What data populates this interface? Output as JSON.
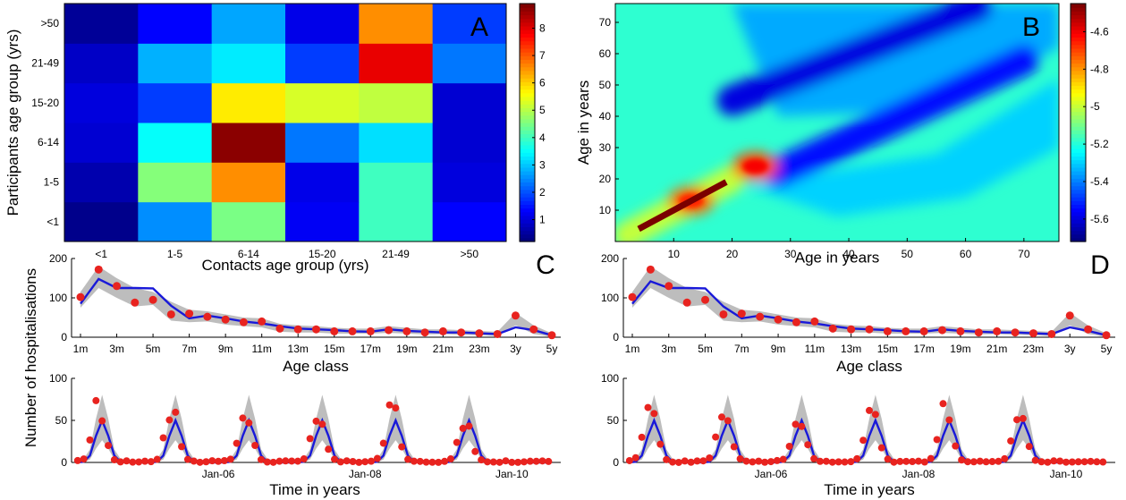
{
  "chart_data": [
    {
      "type": "heatmap",
      "panel": "A",
      "xlabel": "Contacts age group (yrs)",
      "ylabel": "Participants age group (yrs)",
      "categories_x": [
        "<1",
        "1-5",
        "6-14",
        "15-20",
        "21-49",
        ">50"
      ],
      "categories_y": [
        "<1",
        "1-5",
        "6-14",
        "15-20",
        "21-49",
        ">50"
      ],
      "values": [
        [
          0.3,
          2.5,
          4.5,
          1.2,
          4.0,
          1.3
        ],
        [
          0.6,
          4.6,
          6.6,
          1.1,
          4.0,
          1.0
        ],
        [
          0.9,
          3.5,
          8.8,
          2.3,
          3.2,
          0.9
        ],
        [
          1.0,
          1.8,
          5.8,
          5.3,
          5.1,
          0.9
        ],
        [
          0.8,
          2.8,
          3.3,
          1.8,
          8.0,
          2.3
        ],
        [
          0.4,
          1.3,
          2.7,
          1.1,
          6.6,
          1.8
        ]
      ],
      "colorbar_ticks": [
        "1",
        "2",
        "3",
        "4",
        "5",
        "6",
        "7",
        "8"
      ],
      "colorbar_range": [
        0.2,
        8.9
      ],
      "grid": false
    },
    {
      "type": "heatmap",
      "panel": "B",
      "xlabel": "Age in years",
      "ylabel": "Age in years",
      "xlim": [
        0,
        76
      ],
      "ylim": [
        0,
        76
      ],
      "xticks": [
        "10",
        "20",
        "30",
        "40",
        "50",
        "60",
        "70"
      ],
      "yticks": [
        "10",
        "20",
        "30",
        "40",
        "50",
        "60",
        "70"
      ],
      "colorbar_ticks": [
        "-4.6",
        "-4.8",
        "-5",
        "-5.2",
        "-5.4",
        "-5.6"
      ],
      "colorbar_range": [
        -5.72,
        -4.45
      ],
      "features": [
        {
          "kind": "ridge",
          "from": [
            4,
            4
          ],
          "to": [
            19,
            19
          ],
          "level": -4.45
        },
        {
          "kind": "hotspot",
          "at": [
            13,
            13
          ],
          "level": -4.75
        },
        {
          "kind": "hotspot",
          "at": [
            24,
            24
          ],
          "level": -4.7
        },
        {
          "kind": "band",
          "from": [
            20,
            45
          ],
          "to": [
            62,
            75
          ],
          "level": -5.6
        },
        {
          "kind": "band",
          "from": [
            28,
            22
          ],
          "to": [
            70,
            58
          ],
          "level": -5.55
        }
      ],
      "grid": false
    },
    {
      "type": "line",
      "panel": "C",
      "xlabel": "Age class",
      "ylabel": "Number of hospitalisations",
      "categories": [
        "1m",
        "2m",
        "3m",
        "4m",
        "5m",
        "6m",
        "7m",
        "8m",
        "9m",
        "10m",
        "11m",
        "12m",
        "13m",
        "14m",
        "15m",
        "16m",
        "17m",
        "18m",
        "19m",
        "20m",
        "21m",
        "22m",
        "23m",
        "24m",
        "3y",
        "4y",
        "5y"
      ],
      "tick_labels": [
        "1m",
        "3m",
        "5m",
        "7m",
        "9m",
        "11m",
        "13m",
        "15m",
        "17m",
        "19m",
        "21m",
        "23m",
        "3y",
        "5y"
      ],
      "ylim": [
        0,
        200
      ],
      "yticks": [
        "0",
        "100",
        "200"
      ],
      "series": [
        {
          "values": [
            102,
            172,
            130,
            88,
            95,
            58,
            60,
            52,
            45,
            38,
            40,
            22,
            20,
            20,
            15,
            15,
            15,
            18,
            15,
            12,
            15,
            12,
            10,
            8,
            55,
            20,
            5
          ],
          "style": "points"
        },
        {
          "values": [
            85,
            148,
            125,
            125,
            124,
            80,
            48,
            55,
            48,
            40,
            35,
            28,
            22,
            20,
            18,
            15,
            14,
            20,
            16,
            14,
            12,
            12,
            10,
            8,
            25,
            18,
            5
          ],
          "style": "line"
        }
      ],
      "band": {
        "lower": [
          75,
          125,
          100,
          78,
          82,
          42,
          38,
          40,
          32,
          28,
          25,
          14,
          12,
          12,
          9,
          9,
          9,
          11,
          9,
          7,
          8,
          6,
          5,
          3,
          30,
          8,
          1
        ],
        "upper": [
          115,
          180,
          150,
          125,
          115,
          90,
          70,
          66,
          58,
          50,
          48,
          34,
          30,
          28,
          24,
          22,
          22,
          28,
          24,
          20,
          20,
          18,
          16,
          14,
          62,
          30,
          10
        ]
      }
    },
    {
      "type": "line",
      "panel": "D",
      "xlabel": "Age class",
      "ylabel": "",
      "categories": [
        "1m",
        "2m",
        "3m",
        "4m",
        "5m",
        "6m",
        "7m",
        "8m",
        "9m",
        "10m",
        "11m",
        "12m",
        "13m",
        "14m",
        "15m",
        "16m",
        "17m",
        "18m",
        "19m",
        "20m",
        "21m",
        "22m",
        "23m",
        "24m",
        "3y",
        "4y",
        "5y"
      ],
      "tick_labels": [
        "1m",
        "3m",
        "5m",
        "7m",
        "9m",
        "11m",
        "13m",
        "15m",
        "17m",
        "19m",
        "21m",
        "23m",
        "3y",
        "5y"
      ],
      "ylim": [
        0,
        200
      ],
      "yticks": [
        "0",
        "100",
        "200"
      ],
      "series": [
        {
          "values": [
            102,
            172,
            130,
            88,
            95,
            58,
            60,
            52,
            45,
            38,
            40,
            22,
            20,
            20,
            15,
            15,
            15,
            18,
            15,
            12,
            15,
            12,
            10,
            8,
            55,
            20,
            5
          ],
          "style": "points"
        },
        {
          "values": [
            85,
            142,
            125,
            125,
            124,
            78,
            48,
            55,
            48,
            40,
            35,
            28,
            22,
            20,
            18,
            15,
            14,
            20,
            16,
            14,
            12,
            12,
            10,
            8,
            25,
            16,
            5
          ],
          "style": "line"
        }
      ],
      "band": {
        "lower": [
          75,
          125,
          100,
          78,
          82,
          42,
          38,
          40,
          32,
          28,
          25,
          14,
          12,
          12,
          9,
          9,
          9,
          11,
          9,
          7,
          8,
          6,
          5,
          3,
          30,
          8,
          1
        ],
        "upper": [
          115,
          180,
          150,
          125,
          115,
          90,
          70,
          66,
          58,
          50,
          48,
          34,
          30,
          28,
          24,
          22,
          22,
          28,
          24,
          20,
          20,
          18,
          16,
          14,
          62,
          30,
          10
        ]
      }
    },
    {
      "type": "line",
      "panel": "time-left",
      "xlabel": "Time in years",
      "ylabel": "",
      "xlim": [
        0,
        72
      ],
      "ylim": [
        0,
        100
      ],
      "yticks": [
        "0",
        "50",
        "100"
      ],
      "xticks": [
        {
          "at": 24,
          "label": "Jan-06"
        },
        {
          "at": 48,
          "label": "Jan-08"
        },
        {
          "at": 72,
          "label": "Jan-10"
        }
      ],
      "peak_months": [
        3,
        15,
        27,
        39,
        51,
        63
      ],
      "observed_peaks": [
        68,
        62,
        58,
        58,
        67,
        52
      ],
      "model_peaks": [
        50,
        50,
        50,
        50,
        50,
        50
      ]
    },
    {
      "type": "line",
      "panel": "time-right",
      "xlabel": "Time in years",
      "ylabel": "",
      "xlim": [
        0,
        72
      ],
      "ylim": [
        0,
        100
      ],
      "yticks": [
        "0",
        "50",
        "100"
      ],
      "xticks": [
        {
          "at": 24,
          "label": "Jan-06"
        },
        {
          "at": 48,
          "label": "Jan-08"
        },
        {
          "at": 72,
          "label": "Jan-10"
        }
      ],
      "peak_months": [
        3,
        15,
        27,
        39,
        51,
        63
      ],
      "observed_peaks": [
        68,
        62,
        58,
        58,
        67,
        52
      ],
      "model_peaks": [
        50,
        50,
        50,
        50,
        50,
        50
      ]
    }
  ]
}
